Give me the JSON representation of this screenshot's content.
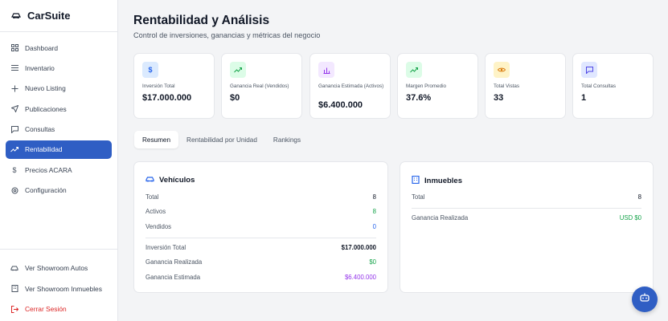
{
  "app": {
    "title": "CarSuite"
  },
  "sidebar": {
    "items": [
      {
        "label": "Dashboard",
        "icon": "grid-icon"
      },
      {
        "label": "Inventario",
        "icon": "list-icon"
      },
      {
        "label": "Nuevo Listing",
        "icon": "plus-icon"
      },
      {
        "label": "Publicaciones",
        "icon": "send-icon"
      },
      {
        "label": "Consultas",
        "icon": "message-icon"
      },
      {
        "label": "Rentabilidad",
        "icon": "trending-up-icon",
        "active": true
      },
      {
        "label": "Precios ACARA",
        "icon": "dollar-icon"
      },
      {
        "label": "Configuración",
        "icon": "gear-icon"
      }
    ],
    "bottom": [
      {
        "label": "Ver Showroom Autos",
        "icon": "car-icon"
      },
      {
        "label": "Ver Showroom Inmuebles",
        "icon": "building-icon"
      },
      {
        "label": "Cerrar Sesión",
        "icon": "logout-icon"
      }
    ]
  },
  "page": {
    "title": "Rentabilidad y Análisis",
    "subtitle": "Control de inversiones, ganancias y métricas del negocio"
  },
  "stats": [
    {
      "label": "Inversión Total",
      "value": "$17.000.000",
      "icon": "dollar-icon",
      "color": "#2563eb"
    },
    {
      "label": "Ganancia Real (Vendidos)",
      "value": "$0",
      "icon": "trending-up-icon",
      "color": "#16a34a"
    },
    {
      "label": "Ganancia Estimada (Activos)",
      "value": "$6.400.000",
      "icon": "bar-chart-icon",
      "color": "#9333ea"
    },
    {
      "label": "Margen Promedio",
      "value": "37.6%",
      "icon": "trending-up-icon",
      "color": "#16a34a"
    },
    {
      "label": "Total Vistas",
      "value": "33",
      "icon": "eye-icon",
      "color": "#d97706"
    },
    {
      "label": "Total Consultas",
      "value": "1",
      "icon": "message-icon",
      "color": "#4f46e5"
    }
  ],
  "tabs": [
    {
      "label": "Resumen",
      "active": true
    },
    {
      "label": "Rentabilidad por Unidad"
    },
    {
      "label": "Rankings"
    }
  ],
  "vehiculos": {
    "title": "Vehículos",
    "rows": [
      {
        "label": "Total",
        "value": "8"
      },
      {
        "label": "Activos",
        "value": "8"
      },
      {
        "label": "Vendidos",
        "value": "0"
      }
    ],
    "money": [
      {
        "label": "Inversión Total",
        "value": "$17.000.000"
      },
      {
        "label": "Ganancia Realizada",
        "value": "$0"
      },
      {
        "label": "Ganancia Estimada",
        "value": "$6.400.000"
      }
    ]
  },
  "inmuebles": {
    "title": "Inmuebles",
    "rows": [
      {
        "label": "Total",
        "value": "8"
      }
    ],
    "money": [
      {
        "label": "Ganancia Realizada",
        "value": "USD $0"
      }
    ]
  },
  "colors": {
    "accent": "#2f5ec4",
    "green": "#16a34a",
    "blue": "#2563eb",
    "purple": "#9333ea",
    "danger": "#dc2626"
  }
}
